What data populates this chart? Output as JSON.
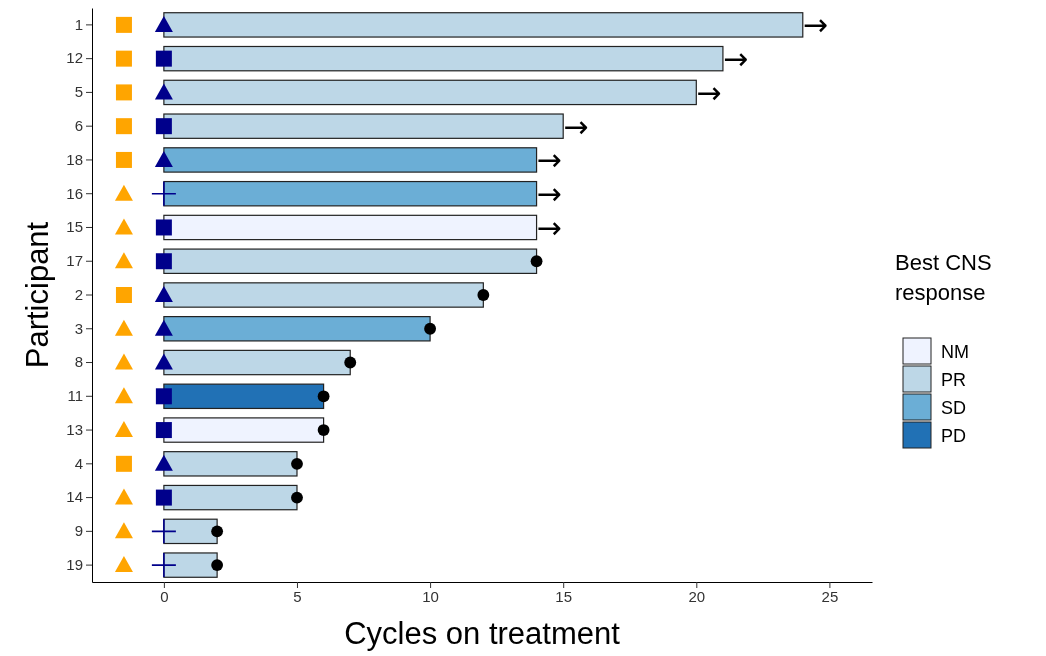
{
  "chart_data": {
    "type": "bar",
    "orientation": "horizontal",
    "xlabel": "Cycles on treatment",
    "ylabel": "Participant",
    "legend_title": "Best CNS response",
    "legend": "right",
    "grid": false,
    "annotations": [
      {
        "text": "→",
        "x": 24,
        "y": "1"
      },
      {
        "text": "→",
        "x": 21,
        "y": "12"
      },
      {
        "text": "→",
        "x": 20,
        "y": "5"
      },
      {
        "text": "→",
        "x": 15,
        "y": "6"
      },
      {
        "text": "→",
        "x": 14,
        "y": "18"
      },
      {
        "text": "→",
        "x": 14,
        "y": "16"
      },
      {
        "text": "→",
        "x": 14,
        "y": "15"
      }
    ],
    "categories": [
      "1",
      "12",
      "5",
      "6",
      "18",
      "16",
      "15",
      "17",
      "2",
      "3",
      "8",
      "11",
      "13",
      "4",
      "14",
      "9",
      "19"
    ],
    "xlim": [
      -2.7,
      26.6
    ],
    "xticks": [
      0,
      5,
      10,
      15,
      20,
      25
    ],
    "series": [
      {
        "name": "NM",
        "color": "#eff3ff",
        "values": [
          null,
          null,
          null,
          null,
          null,
          null,
          14,
          null,
          null,
          null,
          null,
          null,
          6,
          null,
          null,
          null,
          null
        ]
      },
      {
        "name": "PR",
        "color": "#bdd7e7",
        "values": [
          24,
          21,
          20,
          15,
          null,
          null,
          null,
          14,
          12,
          null,
          7,
          null,
          null,
          5,
          5,
          2,
          2
        ]
      },
      {
        "name": "SD",
        "color": "#6baed6",
        "values": [
          null,
          null,
          null,
          null,
          14,
          14,
          null,
          null,
          null,
          10,
          null,
          null,
          null,
          null,
          null,
          null,
          null
        ]
      },
      {
        "name": "PD",
        "color": "#2171b5",
        "values": [
          null,
          null,
          null,
          null,
          null,
          null,
          null,
          null,
          null,
          null,
          null,
          6,
          null,
          null,
          null,
          null,
          null
        ]
      },
      {
        "type": "scatter",
        "marker": "square",
        "color": "#ffa500",
        "values": [
          -1.5,
          -1.5,
          -1.5,
          -1.5,
          -1.5,
          null,
          null,
          null,
          -1.5,
          null,
          null,
          null,
          null,
          -1.5,
          null,
          null,
          null
        ]
      },
      {
        "type": "scatter",
        "marker": "triangle",
        "color": "#ffa500",
        "values": [
          null,
          null,
          null,
          null,
          null,
          -1.5,
          -1.5,
          -1.5,
          null,
          -1.5,
          -1.5,
          -1.5,
          -1.5,
          null,
          -1.5,
          -1.5,
          -1.5
        ]
      },
      {
        "type": "scatter",
        "marker": "triangle",
        "color": "#00008b",
        "values": [
          0,
          null,
          0,
          null,
          0,
          null,
          null,
          null,
          0,
          0,
          0,
          null,
          null,
          0,
          null,
          null,
          null
        ]
      },
      {
        "type": "scatter",
        "marker": "square",
        "color": "#00008b",
        "values": [
          null,
          0,
          null,
          0,
          null,
          null,
          0,
          0,
          null,
          null,
          null,
          0,
          0,
          null,
          0,
          null,
          null
        ]
      },
      {
        "type": "scatter",
        "marker": "cross",
        "color": "#00008b",
        "values": [
          null,
          null,
          null,
          null,
          null,
          0,
          null,
          null,
          null,
          null,
          null,
          null,
          null,
          null,
          null,
          0,
          0
        ]
      },
      {
        "type": "scatter",
        "marker": "circle",
        "color": "#000000",
        "values": [
          null,
          null,
          null,
          null,
          null,
          null,
          null,
          14,
          12,
          10,
          7,
          6,
          6,
          5,
          5,
          2,
          2
        ]
      }
    ]
  }
}
